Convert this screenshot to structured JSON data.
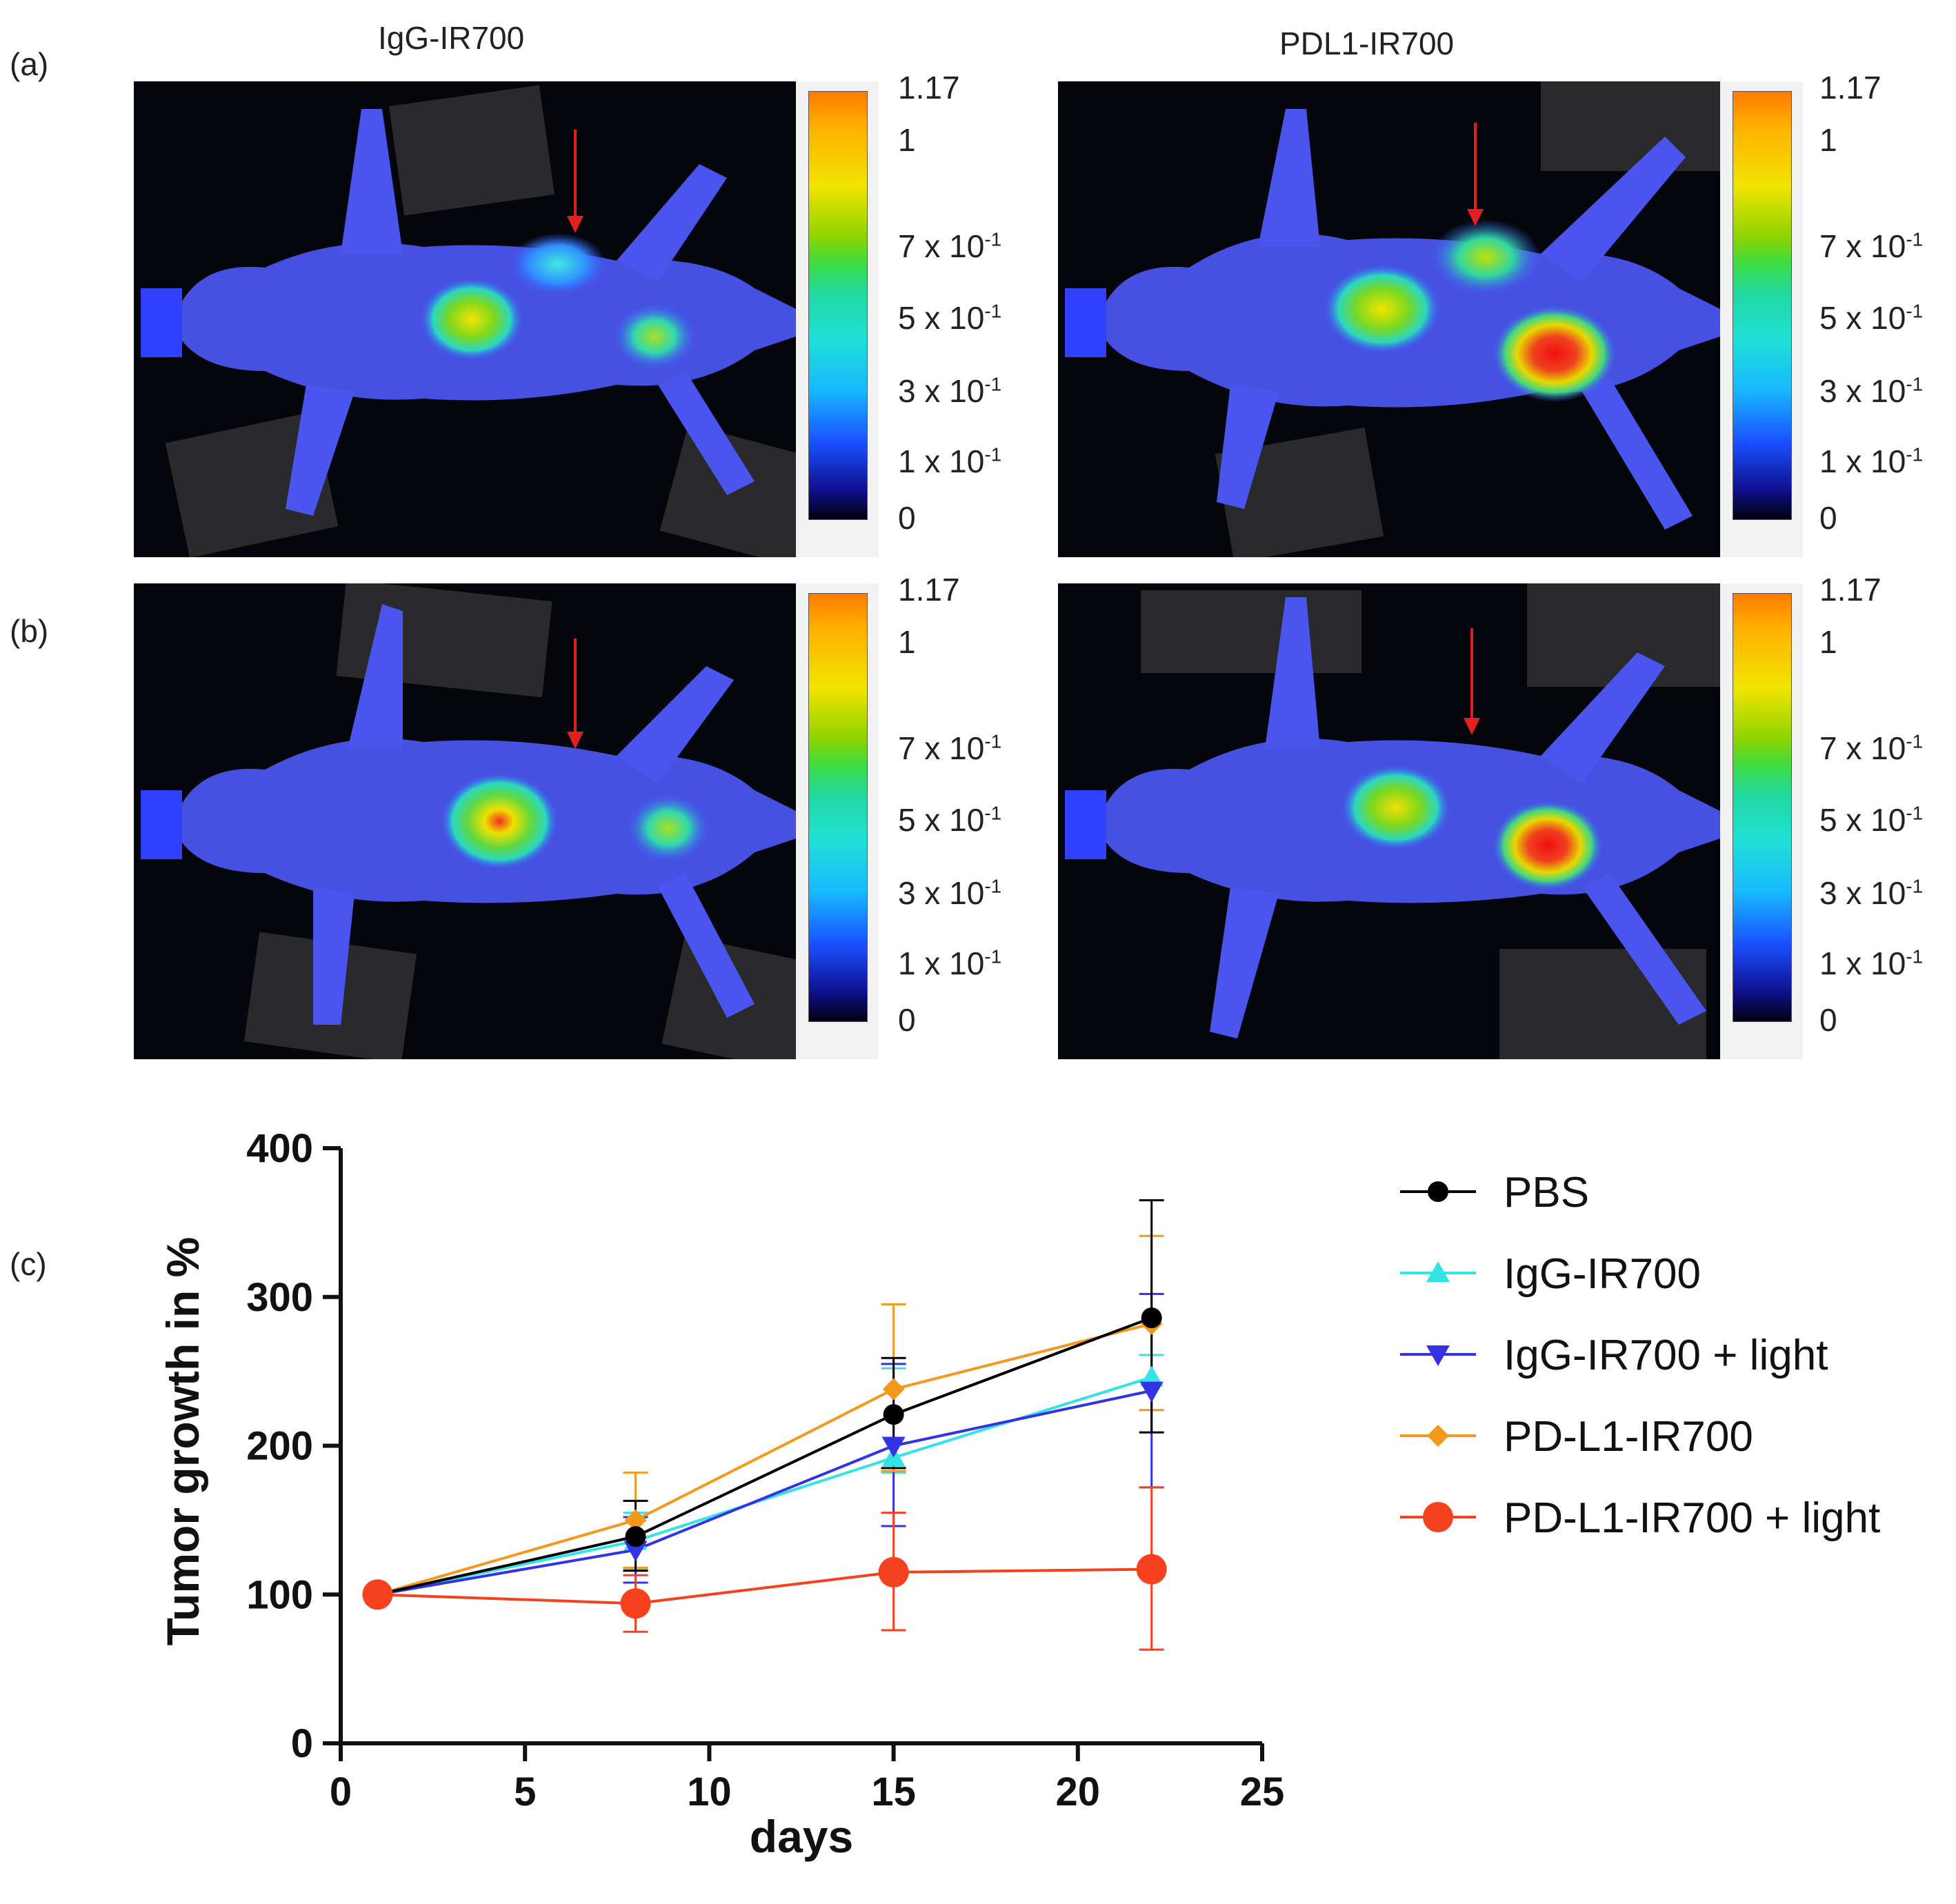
{
  "panel_labels": {
    "a": "(a)",
    "b": "(b)",
    "c": "(c)"
  },
  "column_titles": {
    "left": "IgG-IR700",
    "right": "PDL1-IR700"
  },
  "colorbar": {
    "max": "1.17",
    "one": "1",
    "t7": "7 x 10",
    "t5": "5 x 10",
    "t3": "3 x 10",
    "t1": "1 x 10",
    "exp": "-1",
    "zero": "0"
  },
  "colors": {
    "PBS": "#000000",
    "IgG-IR700": "#33e3e8",
    "IgG-IR700 + light": "#3333e6",
    "PD-L1-IR700": "#f39a1e",
    "PD-L1-IR700 + light": "#f5411e",
    "arrow": "#e0201e"
  },
  "chart_data": {
    "type": "line",
    "title": "",
    "xlabel": "days",
    "ylabel": "Tumor growth in %",
    "xlim": [
      0,
      25
    ],
    "ylim": [
      0,
      400
    ],
    "xticks": [
      0,
      5,
      10,
      15,
      20,
      25
    ],
    "yticks": [
      0,
      100,
      200,
      300,
      400
    ],
    "x": [
      1,
      8,
      15,
      22
    ],
    "series": [
      {
        "name": "PBS",
        "marker": "circle",
        "values": [
          100,
          139,
          221,
          286
        ],
        "err_lo": [
          97,
          116,
          185,
          209
        ],
        "err_hi": [
          103,
          163,
          259,
          365
        ]
      },
      {
        "name": "IgG-IR700",
        "marker": "triangle-up",
        "values": [
          100,
          136,
          192,
          246
        ],
        "err_lo": [
          97,
          117,
          182,
          224
        ],
        "err_hi": [
          103,
          155,
          252,
          261
        ]
      },
      {
        "name": "IgG-IR700 + light",
        "marker": "triangle-down",
        "values": [
          100,
          130,
          200,
          237
        ],
        "err_lo": [
          97,
          108,
          146,
          172
        ],
        "err_hi": [
          103,
          152,
          255,
          302
        ]
      },
      {
        "name": "PD-L1-IR700",
        "marker": "diamond",
        "values": [
          100,
          150,
          238,
          282
        ],
        "err_lo": [
          97,
          118,
          183,
          224
        ],
        "err_hi": [
          103,
          182,
          295,
          341
        ]
      },
      {
        "name": "PD-L1-IR700 + light",
        "marker": "circle-large",
        "values": [
          100,
          94,
          115,
          117
        ],
        "err_lo": [
          97,
          75,
          76,
          63
        ],
        "err_hi": [
          103,
          113,
          155,
          172
        ]
      }
    ],
    "legend_position": "right"
  }
}
